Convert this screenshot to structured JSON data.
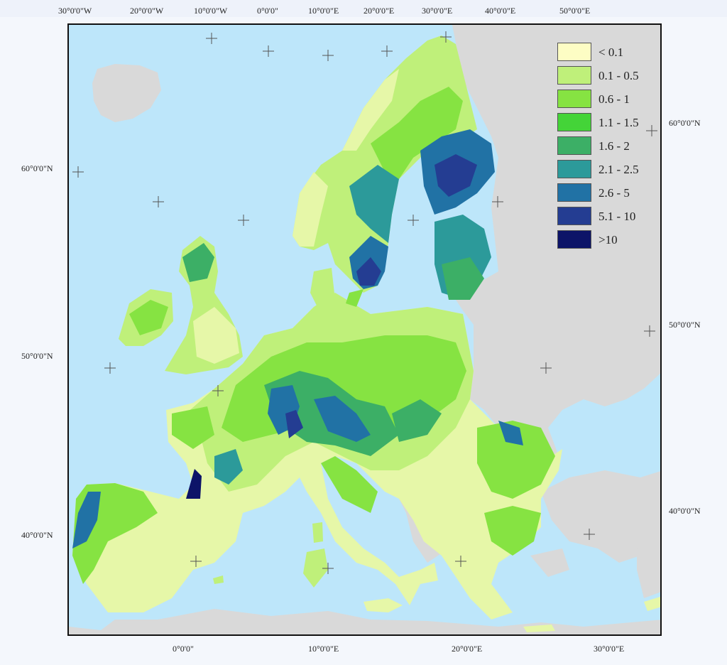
{
  "map": {
    "top_longitude_labels": [
      "30°0'0\"W",
      "20°0'0\"W",
      "10°0'0\"W",
      "0°0'0\"",
      "10°0'0\"E",
      "20°0'0\"E",
      "30°0'0\"E",
      "40°0'0\"E",
      "50°0'0\"E"
    ],
    "bottom_longitude_labels": [
      "0°0'0\"",
      "10°0'0\"E",
      "20°0'0\"E",
      "30°0'0\"E"
    ],
    "left_latitude_labels": [
      "60°0'0\"N",
      "50°0'0\"N",
      "40°0'0\"N"
    ],
    "right_latitude_labels": [
      "60°0'0\"N",
      "50°0'0\"N",
      "40°0'0\"N"
    ],
    "colors": {
      "sea": "#bde6fa",
      "non_data_land": "#d9d9d9",
      "graticule_cross": "#555555"
    }
  },
  "legend": {
    "items": [
      {
        "label": "< 0.1",
        "color": "#fdfdc4"
      },
      {
        "label": "0.1 - 0.5",
        "color": "#bff07a"
      },
      {
        "label": "0.6 - 1",
        "color": "#86e342"
      },
      {
        "label": "1.1 - 1.5",
        "color": "#44d438"
      },
      {
        "label": "1.6 - 2",
        "color": "#3caf66"
      },
      {
        "label": "2.1 - 2.5",
        "color": "#2c9a9a"
      },
      {
        "label": "2.6 - 5",
        "color": "#2172a5"
      },
      {
        "label": "5.1 - 10",
        "color": "#243d92"
      },
      {
        "label": ">10",
        "color": "#0d1468"
      }
    ]
  }
}
